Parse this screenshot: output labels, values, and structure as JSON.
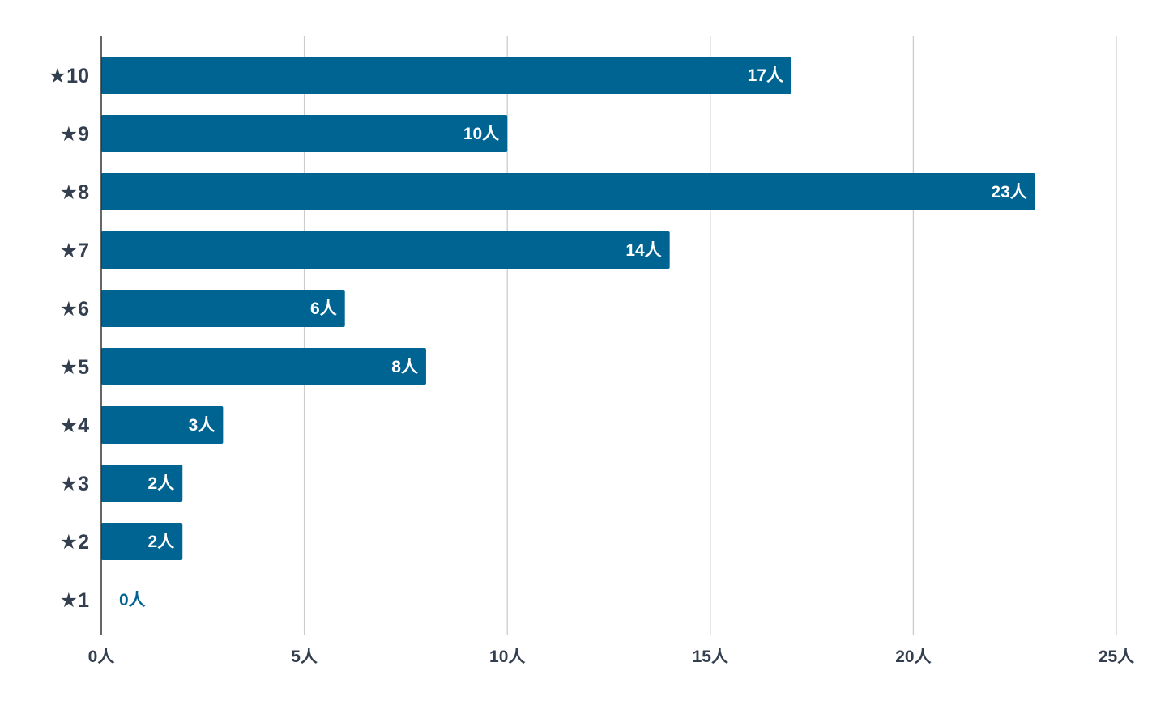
{
  "chart_data": {
    "type": "bar",
    "orientation": "horizontal",
    "categories": [
      "★10",
      "★9",
      "★8",
      "★7",
      "★6",
      "★5",
      "★4",
      "★3",
      "★2",
      "★1"
    ],
    "values": [
      17,
      10,
      23,
      14,
      6,
      8,
      3,
      2,
      2,
      0
    ],
    "data_labels": [
      "17人",
      "10人",
      "23人",
      "14人",
      "6人",
      "8人",
      "3人",
      "2人",
      "2人",
      "0人"
    ],
    "x_ticks": [
      0,
      5,
      10,
      15,
      20,
      25
    ],
    "x_tick_labels": [
      "0人",
      "5人",
      "10人",
      "15人",
      "20人",
      "25人"
    ],
    "xlim": [
      0,
      25
    ],
    "title": "",
    "xlabel": "",
    "ylabel": "",
    "grid": "vertical",
    "legend": "none",
    "colors": {
      "bar": "#006493",
      "bar_label_inside": "#ffffff",
      "bar_label_outside": "#006493",
      "axis_text": "#333f4f",
      "grid": "#cccccc",
      "axis_line": "#333333"
    }
  }
}
